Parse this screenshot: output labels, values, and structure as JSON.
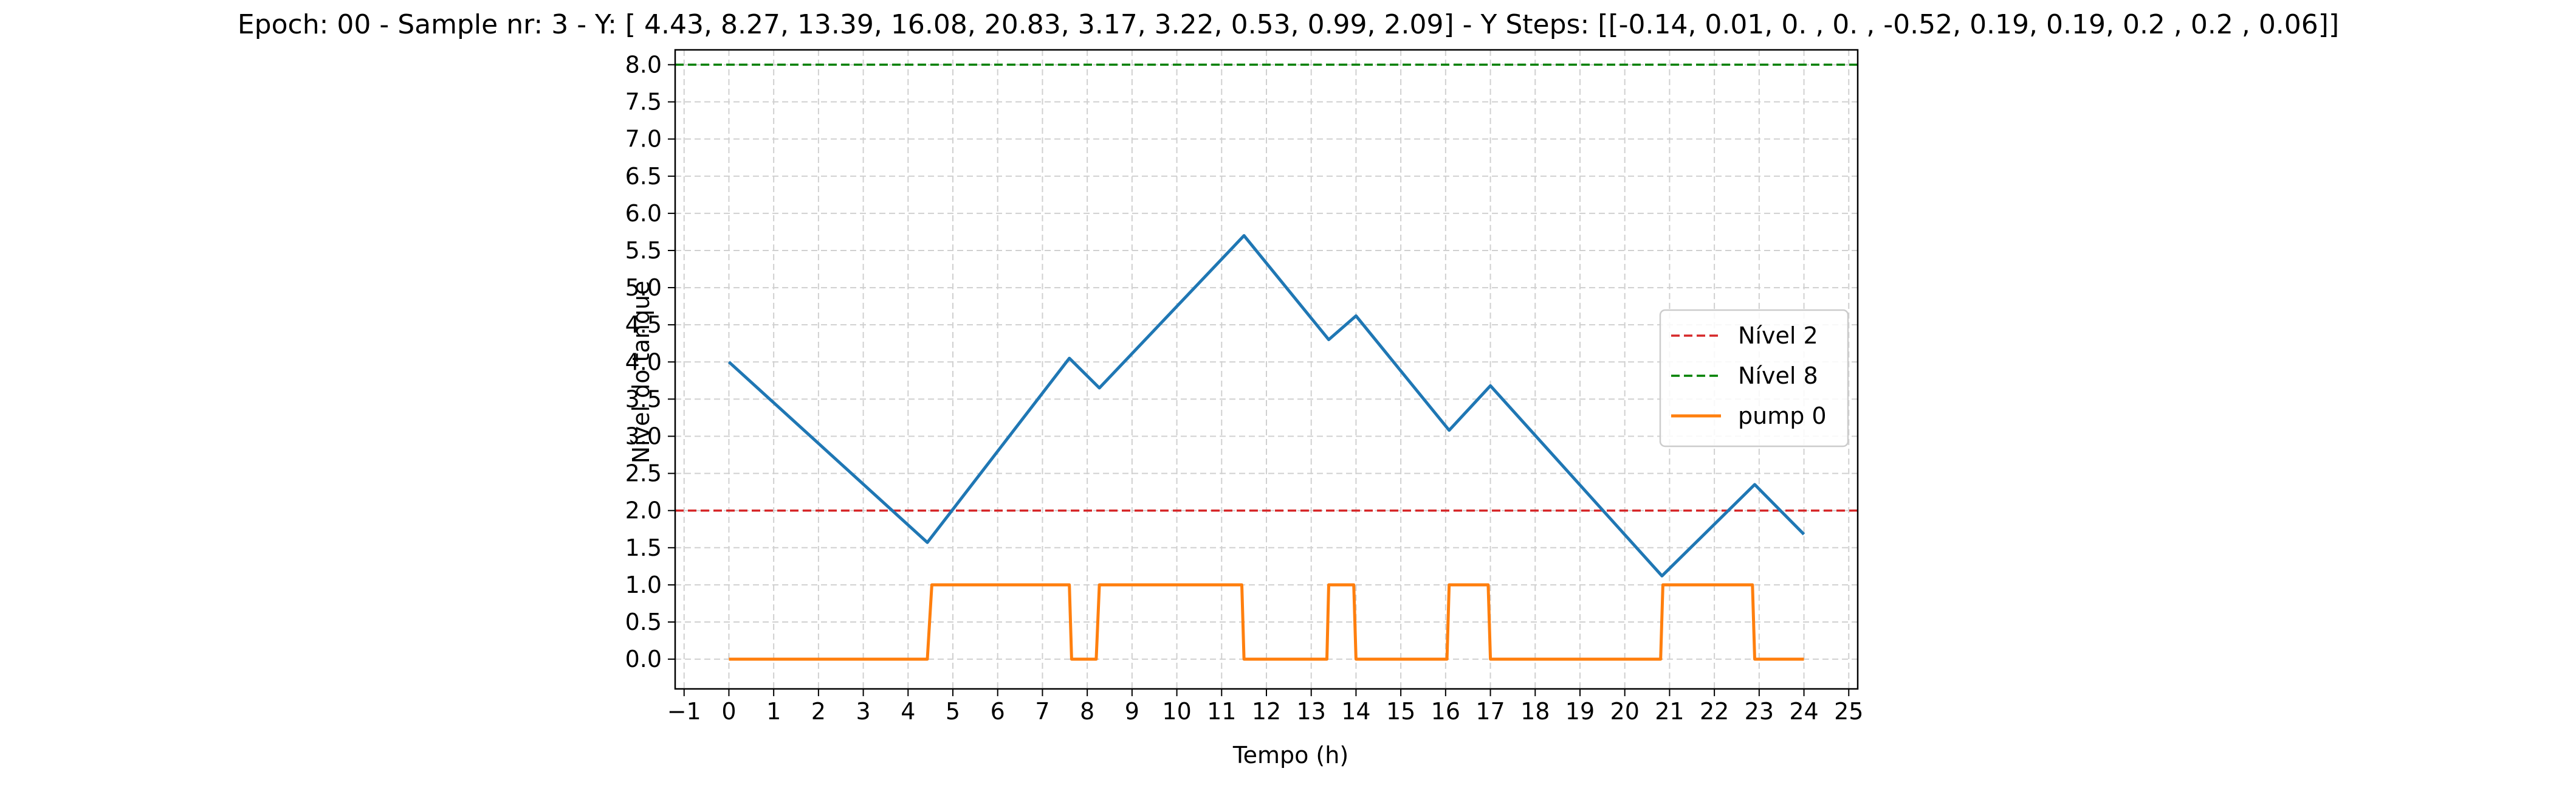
{
  "chart_data": {
    "type": "line",
    "title": "Epoch: 00 - Sample nr: 3 - Y: [ 4.43,  8.27, 13.39, 16.08, 20.83,  3.17,  3.22,  0.53,  0.99,  2.09] - Y Steps: [[-0.14,  0.01,  0.  ,  0.  , -0.52,  0.19,  0.19,  0.2 ,  0.2 ,  0.06]]",
    "xlabel": "Tempo (h)",
    "ylabel": "Nível do tanque",
    "xlim": [
      -1.2,
      25.2
    ],
    "ylim": [
      -0.4,
      8.2
    ],
    "xticks": [
      -1,
      0,
      1,
      2,
      3,
      4,
      5,
      6,
      7,
      8,
      9,
      10,
      11,
      12,
      13,
      14,
      15,
      16,
      17,
      18,
      19,
      20,
      21,
      22,
      23,
      24,
      25
    ],
    "xtick_labels": [
      "−1",
      "0",
      "1",
      "2",
      "3",
      "4",
      "5",
      "6",
      "7",
      "8",
      "9",
      "10",
      "11",
      "12",
      "13",
      "14",
      "15",
      "16",
      "17",
      "18",
      "19",
      "20",
      "21",
      "22",
      "23",
      "24",
      "25"
    ],
    "yticks": [
      0.0,
      0.5,
      1.0,
      1.5,
      2.0,
      2.5,
      3.0,
      3.5,
      4.0,
      4.5,
      5.0,
      5.5,
      6.0,
      6.5,
      7.0,
      7.5,
      8.0
    ],
    "ytick_labels": [
      "0.0",
      "0.5",
      "1.0",
      "1.5",
      "2.0",
      "2.5",
      "3.0",
      "3.5",
      "4.0",
      "4.5",
      "5.0",
      "5.5",
      "6.0",
      "6.5",
      "7.0",
      "7.5",
      "8.0"
    ],
    "grid": true,
    "legend_position": "center-right",
    "series": [
      {
        "key": "tank_level",
        "color": "#1f77b4",
        "style": "solid",
        "x": [
          0,
          4.43,
          7.6,
          8.27,
          11.5,
          13.39,
          14.0,
          16.08,
          17.0,
          20.83,
          22.9,
          24.0
        ],
        "y": [
          4.0,
          1.57,
          4.05,
          3.65,
          5.7,
          4.3,
          4.62,
          3.08,
          3.68,
          1.12,
          2.35,
          1.68
        ]
      },
      {
        "name": "Nível 2",
        "color": "#d62728",
        "style": "dashed",
        "x": [
          -1.2,
          25.2
        ],
        "y": [
          2,
          2
        ]
      },
      {
        "name": "Nível 8",
        "color": "#008000",
        "style": "dashed",
        "x": [
          -1.2,
          25.2
        ],
        "y": [
          8,
          8
        ]
      },
      {
        "name": "pump 0",
        "color": "#ff7f0e",
        "style": "solid",
        "x": [
          0,
          4.43,
          4.53,
          7.6,
          7.65,
          8.2,
          8.27,
          11.45,
          11.5,
          13.35,
          13.39,
          13.95,
          14.0,
          16.03,
          16.08,
          16.95,
          17.0,
          20.8,
          20.85,
          22.85,
          22.9,
          24.0
        ],
        "y": [
          0,
          0,
          1,
          1,
          0,
          0,
          1,
          1,
          0,
          0,
          1,
          1,
          0,
          0,
          1,
          1,
          0,
          0,
          1,
          1,
          0,
          0
        ]
      }
    ]
  }
}
